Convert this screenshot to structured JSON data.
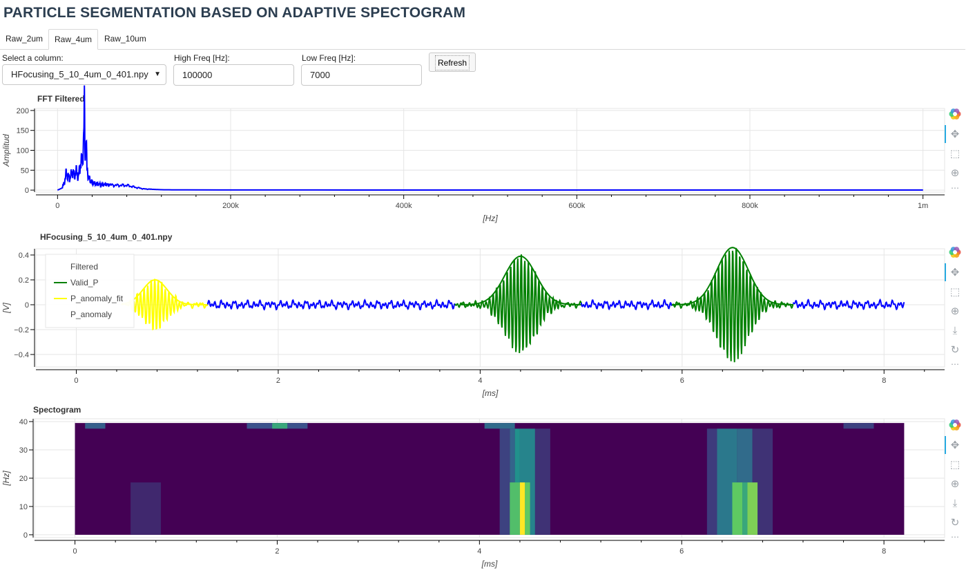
{
  "page": {
    "title": "PARTICLE SEGMENTATION BASED ON ADAPTIVE SPECTOGRAM"
  },
  "tabs": [
    {
      "label": "Raw_2um",
      "active": false
    },
    {
      "label": "Raw_4um",
      "active": true
    },
    {
      "label": "Raw_10um",
      "active": false
    }
  ],
  "controls": {
    "column_label": "Select a column:",
    "column_value": "HFocusing_5_10_4um_0_401.npy",
    "high_label": "High Freq [Hz]:",
    "high_value": "100000",
    "low_label": "Low Freq [Hz]:",
    "low_value": "7000",
    "refresh_label": "Refresh"
  },
  "colors": {
    "filtered": "#0000ff",
    "valid": "#008000",
    "anomaly_fit": "#ffff00",
    "title": "#2c3e50"
  },
  "toolbar_icons": [
    "bokeh-logo-icon",
    "pan-icon",
    "box-zoom-icon",
    "wheel-zoom-icon",
    "save-icon",
    "reset-icon",
    "more-icon"
  ],
  "chart_data": [
    {
      "type": "line",
      "title": "FFT Filtered",
      "xlabel": "[Hz]",
      "ylabel": "Amplitud",
      "xlim": [
        -25000,
        1025000
      ],
      "ylim": [
        -5,
        205
      ],
      "xticks": [
        0,
        200000,
        400000,
        600000,
        800000,
        1000000
      ],
      "xtick_labels": [
        "0",
        "200k",
        "400k",
        "600k",
        "800k",
        "1m"
      ],
      "yticks": [
        0,
        50,
        100,
        150,
        200
      ],
      "ytick_labels": [
        "0",
        "50",
        "100",
        "150",
        "200"
      ],
      "grid": true,
      "series": [
        {
          "color": "#0000ff",
          "x": [
            0,
            5000,
            8000,
            10000,
            12000,
            14000,
            17000,
            20000,
            22000,
            24000,
            26000,
            28000,
            30000,
            31000,
            32000,
            33000,
            34000,
            36000,
            38000,
            40000,
            45000,
            50000,
            55000,
            60000,
            70000,
            80000,
            90000,
            100000,
            110000,
            120000,
            150000,
            300000,
            600000,
            1000000
          ],
          "y": [
            0,
            5,
            20,
            42,
            35,
            30,
            45,
            38,
            48,
            30,
            62,
            70,
            110,
            205,
            90,
            120,
            55,
            30,
            25,
            18,
            16,
            14,
            14,
            13,
            12,
            12,
            7,
            3,
            2,
            1,
            0.5,
            0.3,
            0.2,
            0.2
          ]
        }
      ]
    },
    {
      "type": "line",
      "title": "HFocusing_5_10_4um_0_401.npy",
      "xlabel": "[ms]",
      "ylabel": "[V]",
      "xlim": [
        -0.4,
        8.6
      ],
      "ylim": [
        -0.5,
        0.45
      ],
      "xticks": [
        0,
        2,
        4,
        6,
        8
      ],
      "xtick_labels": [
        "0",
        "2",
        "4",
        "6",
        "8"
      ],
      "yticks": [
        -0.4,
        -0.2,
        0,
        0.2,
        0.4
      ],
      "ytick_labels": [
        "−0.4",
        "−0.2",
        "0",
        "0.2",
        "0.4"
      ],
      "grid": true,
      "legend_position": "top-left",
      "series": [
        {
          "name": "Filtered",
          "color": "#0000ff",
          "x": [
            1.3,
            3.75,
            5.0,
            5.9,
            7.1,
            8.2
          ],
          "noise_amplitude": 0.04
        },
        {
          "name": "Valid_P",
          "color": "#008000",
          "x": [
            3.75,
            5.0,
            5.9,
            7.1
          ],
          "fits": [
            {
              "center": 4.4,
              "amplitude": 0.39,
              "width": 0.22
            },
            {
              "center": 6.5,
              "amplitude": 0.46,
              "width": 0.22
            }
          ]
        },
        {
          "name": "P_anomaly_fit",
          "color": "#ffff00",
          "x": [
            0.45,
            1.3
          ],
          "fits": [
            {
              "center": 0.78,
              "amplitude": 0.2,
              "width": 0.17
            }
          ]
        },
        {
          "name": "P_anomaly",
          "color": "#ffff00"
        }
      ]
    },
    {
      "type": "heatmap",
      "title": "Spectogram",
      "xlabel": "[ms]",
      "ylabel": "[Hz]",
      "xlim": [
        -0.4,
        8.6
      ],
      "ylim": [
        -1,
        41
      ],
      "xticks": [
        0,
        2,
        4,
        6,
        8
      ],
      "xtick_labels": [
        "0",
        "2",
        "4",
        "6",
        "8"
      ],
      "yticks": [
        0,
        10,
        20,
        30,
        40
      ],
      "ytick_labels": [
        "0",
        "10",
        "20",
        "30",
        "40"
      ],
      "colormap": "viridis",
      "x_range": [
        0,
        8.2
      ],
      "y_range": [
        0,
        39.5
      ],
      "bands": [
        {
          "x0": 0.55,
          "x1": 0.85,
          "y0": 0,
          "y1": 18.5,
          "v": 0.12
        },
        {
          "x0": 4.2,
          "x1": 4.3,
          "y0": 0,
          "y1": 37.5,
          "v": 0.2
        },
        {
          "x0": 4.3,
          "x1": 4.35,
          "y0": 0,
          "y1": 37.5,
          "v": 0.32
        },
        {
          "x0": 4.35,
          "x1": 4.4,
          "y0": 0,
          "y1": 37.5,
          "v": 0.5
        },
        {
          "x0": 4.4,
          "x1": 4.55,
          "y0": 0,
          "y1": 37.5,
          "v": 0.45
        },
        {
          "x0": 4.55,
          "x1": 4.7,
          "y0": 0,
          "y1": 37.5,
          "v": 0.15
        },
        {
          "x0": 4.3,
          "x1": 4.4,
          "y0": 0,
          "y1": 18.5,
          "v": 0.7
        },
        {
          "x0": 4.4,
          "x1": 4.45,
          "y0": 0,
          "y1": 18.5,
          "v": 1.0
        },
        {
          "x0": 4.45,
          "x1": 4.5,
          "y0": 0,
          "y1": 18.5,
          "v": 0.75
        },
        {
          "x0": 6.25,
          "x1": 6.35,
          "y0": 0,
          "y1": 37.5,
          "v": 0.18
        },
        {
          "x0": 6.35,
          "x1": 6.55,
          "y0": 0,
          "y1": 37.5,
          "v": 0.4
        },
        {
          "x0": 6.55,
          "x1": 6.7,
          "y0": 0,
          "y1": 37.5,
          "v": 0.35
        },
        {
          "x0": 6.7,
          "x1": 6.9,
          "y0": 0,
          "y1": 37.5,
          "v": 0.15
        },
        {
          "x0": 6.5,
          "x1": 6.6,
          "y0": 0,
          "y1": 18.5,
          "v": 0.75
        },
        {
          "x0": 6.6,
          "x1": 6.65,
          "y0": 0,
          "y1": 18.5,
          "v": 0.6
        },
        {
          "x0": 6.65,
          "x1": 6.75,
          "y0": 0,
          "y1": 18.5,
          "v": 0.8
        },
        {
          "x0": 0.1,
          "x1": 0.3,
          "y0": 37.5,
          "y1": 39.5,
          "v": 0.3
        },
        {
          "x0": 1.7,
          "x1": 2.3,
          "y0": 37.5,
          "y1": 39.5,
          "v": 0.25
        },
        {
          "x0": 1.95,
          "x1": 2.1,
          "y0": 37.5,
          "y1": 39.5,
          "v": 0.6
        },
        {
          "x0": 4.05,
          "x1": 4.35,
          "y0": 37.5,
          "y1": 39.5,
          "v": 0.35
        },
        {
          "x0": 7.6,
          "x1": 7.9,
          "y0": 37.5,
          "y1": 39.5,
          "v": 0.2
        }
      ]
    }
  ]
}
